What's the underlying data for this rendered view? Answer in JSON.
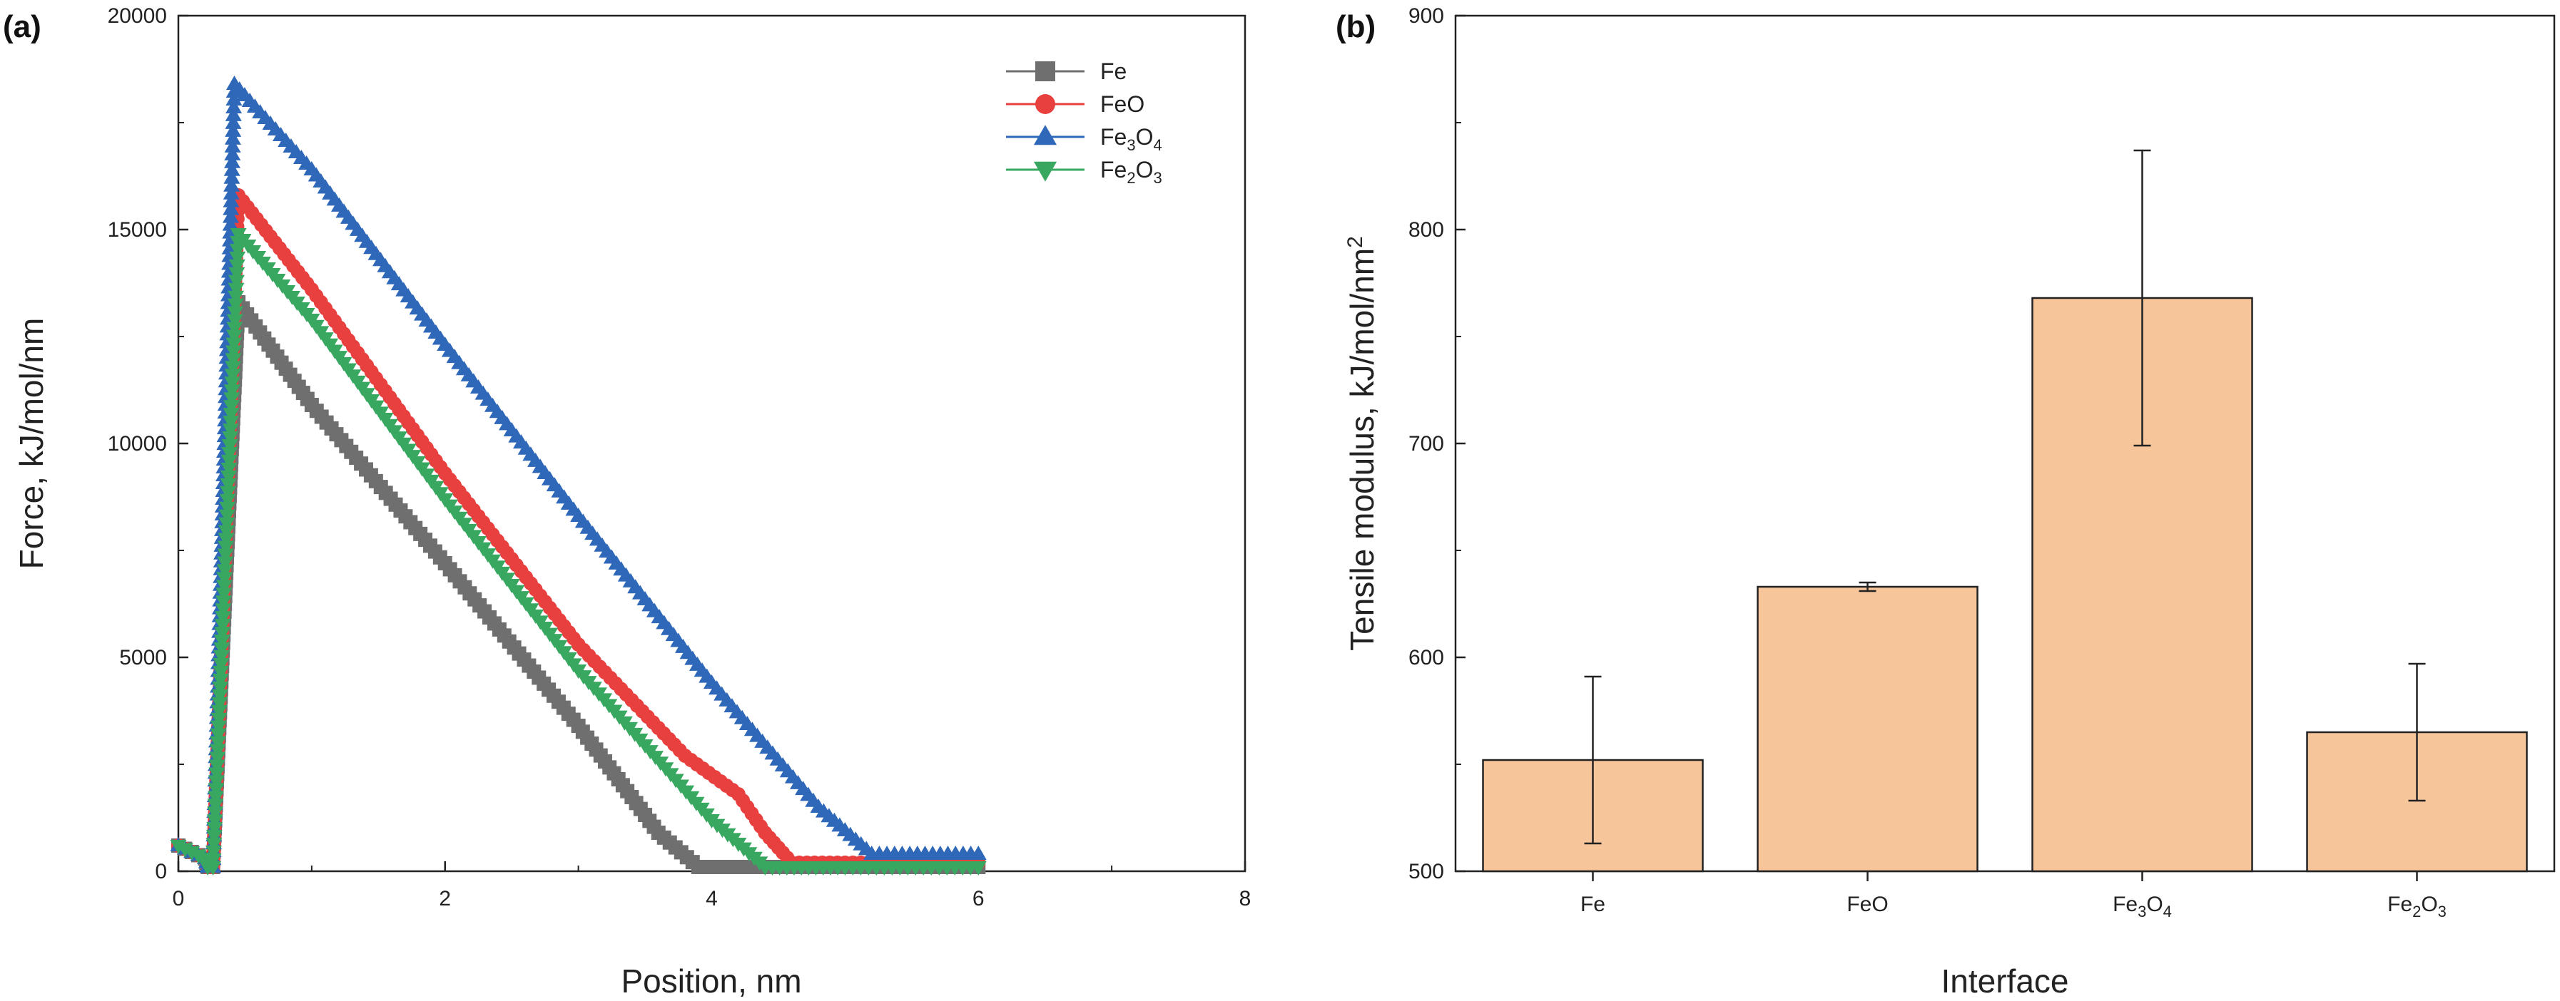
{
  "figure": {
    "panels": [
      "(a)",
      "(b)"
    ]
  },
  "chart_data": [
    {
      "type": "line",
      "panel_label": "(a)",
      "xlabel": "Position, nm",
      "ylabel": "Force, kJ/mol/nm",
      "xlim": [
        0,
        8
      ],
      "ylim": [
        0,
        20000
      ],
      "xticks": [
        0,
        2,
        4,
        6,
        8
      ],
      "yticks": [
        0,
        5000,
        10000,
        15000,
        20000
      ],
      "grid": false,
      "legend": "top-right",
      "series": [
        {
          "name": "Fe",
          "label_main": "Fe",
          "label_sub1": "",
          "label_mid": "",
          "label_sub2": "",
          "color": "#6f6f6f",
          "marker": "square",
          "points": [
            [
              0.0,
              600
            ],
            [
              0.2,
              300
            ],
            [
              0.22,
              100
            ],
            [
              0.26,
              100
            ],
            [
              0.45,
              13300
            ],
            [
              1.0,
              10900
            ],
            [
              2.0,
              7200
            ],
            [
              3.0,
              3400
            ],
            [
              3.6,
              900
            ],
            [
              3.9,
              100
            ],
            [
              4.5,
              100
            ],
            [
              6.0,
              100
            ]
          ]
        },
        {
          "name": "FeO",
          "label_main": "FeO",
          "label_sub1": "",
          "label_mid": "",
          "label_sub2": "",
          "color": "#e8403f",
          "marker": "circle",
          "points": [
            [
              0.0,
              600
            ],
            [
              0.2,
              300
            ],
            [
              0.22,
              100
            ],
            [
              0.26,
              100
            ],
            [
              0.45,
              15800
            ],
            [
              1.0,
              13600
            ],
            [
              2.0,
              9300
            ],
            [
              3.0,
              5300
            ],
            [
              3.8,
              2700
            ],
            [
              4.2,
              1800
            ],
            [
              4.4,
              900
            ],
            [
              4.6,
              200
            ],
            [
              5.0,
              200
            ],
            [
              6.0,
              200
            ]
          ]
        },
        {
          "name": "Fe3O4",
          "label_main": "Fe",
          "label_sub1": "3",
          "label_mid": "O",
          "label_sub2": "4",
          "color": "#2f68b8",
          "marker": "triangle-up",
          "points": [
            [
              0.0,
              600
            ],
            [
              0.2,
              300
            ],
            [
              0.22,
              100
            ],
            [
              0.26,
              100
            ],
            [
              0.42,
              18400
            ],
            [
              1.0,
              16400
            ],
            [
              2.0,
              12300
            ],
            [
              3.0,
              8300
            ],
            [
              4.0,
              4400
            ],
            [
              4.8,
              1500
            ],
            [
              5.2,
              400
            ],
            [
              6.0,
              400
            ]
          ]
        },
        {
          "name": "Fe2O3",
          "label_main": "Fe",
          "label_sub1": "2",
          "label_mid": "O",
          "label_sub2": "3",
          "color": "#38a861",
          "marker": "triangle-down",
          "points": [
            [
              0.0,
              600
            ],
            [
              0.2,
              300
            ],
            [
              0.22,
              100
            ],
            [
              0.26,
              100
            ],
            [
              0.45,
              14900
            ],
            [
              1.0,
              12900
            ],
            [
              2.0,
              8700
            ],
            [
              3.0,
              4700
            ],
            [
              4.0,
              1200
            ],
            [
              4.4,
              100
            ],
            [
              5.0,
              100
            ],
            [
              6.0,
              100
            ]
          ]
        }
      ]
    },
    {
      "type": "bar",
      "panel_label": "(b)",
      "xlabel": "Interface",
      "ylabel_main": "Tensile modulus, kJ/mol/nm",
      "ylabel_sup": "2",
      "ylim": [
        500,
        900
      ],
      "yticks": [
        500,
        600,
        700,
        800,
        900
      ],
      "grid": false,
      "bar_color": "#f7c59a",
      "categories": [
        {
          "name": "Fe",
          "label_main": "Fe",
          "label_sub1": "",
          "label_mid": "",
          "label_sub2": ""
        },
        {
          "name": "FeO",
          "label_main": "FeO",
          "label_sub1": "",
          "label_mid": "",
          "label_sub2": ""
        },
        {
          "name": "Fe3O4",
          "label_main": "Fe",
          "label_sub1": "3",
          "label_mid": "O",
          "label_sub2": "4"
        },
        {
          "name": "Fe2O3",
          "label_main": "Fe",
          "label_sub1": "2",
          "label_mid": "O",
          "label_sub2": "3"
        }
      ],
      "values": [
        552,
        633,
        768,
        565
      ],
      "errors": [
        39,
        2,
        69,
        32
      ]
    }
  ]
}
